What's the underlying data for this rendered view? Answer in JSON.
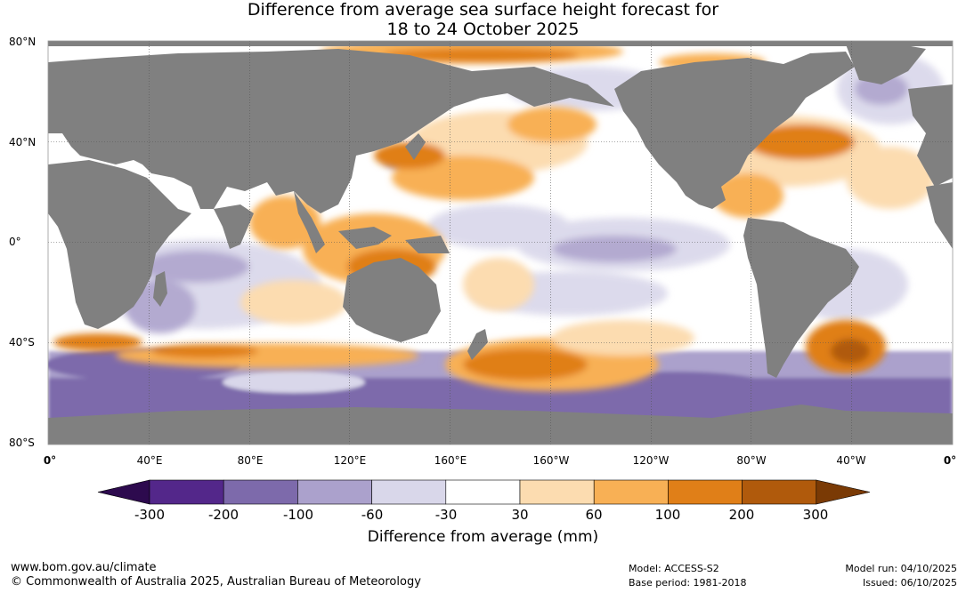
{
  "title": {
    "line1": "Difference from average sea surface height forecast for",
    "line2": "18 to 24 October 2025"
  },
  "map": {
    "type": "global sea surface height anomaly map",
    "latitude_labels": [
      "80°N",
      "40°N",
      "0°",
      "40°S",
      "80°S"
    ],
    "longitude_labels": [
      "0°",
      "40°E",
      "80°E",
      "120°E",
      "160°E",
      "160°W",
      "120°W",
      "80°W",
      "40°W",
      "0°"
    ],
    "land_color": "#808080",
    "gridlines": true
  },
  "colorbar": {
    "label": "Difference from average (mm)",
    "tick_labels": [
      "-300",
      "-200",
      "-100",
      "-60",
      "-30",
      "30",
      "60",
      "100",
      "200",
      "300"
    ],
    "colors": [
      "#2d0a4e",
      "#53278a",
      "#7d6aab",
      "#aba1cc",
      "#d9d7ea",
      "#ffffff",
      "#fcdcb0",
      "#f8b055",
      "#e07f18",
      "#b05a0c",
      "#7a3a05"
    ]
  },
  "footer": {
    "website": "www.bom.gov.au/climate",
    "copyright": "© Commonwealth of Australia 2025, Australian Bureau of Meteorology",
    "model": "Model: ACCESS-S2",
    "base_period": "Base period: 1981-2018",
    "model_run": "Model run: 04/10/2025",
    "issued": "Issued: 06/10/2025"
  }
}
